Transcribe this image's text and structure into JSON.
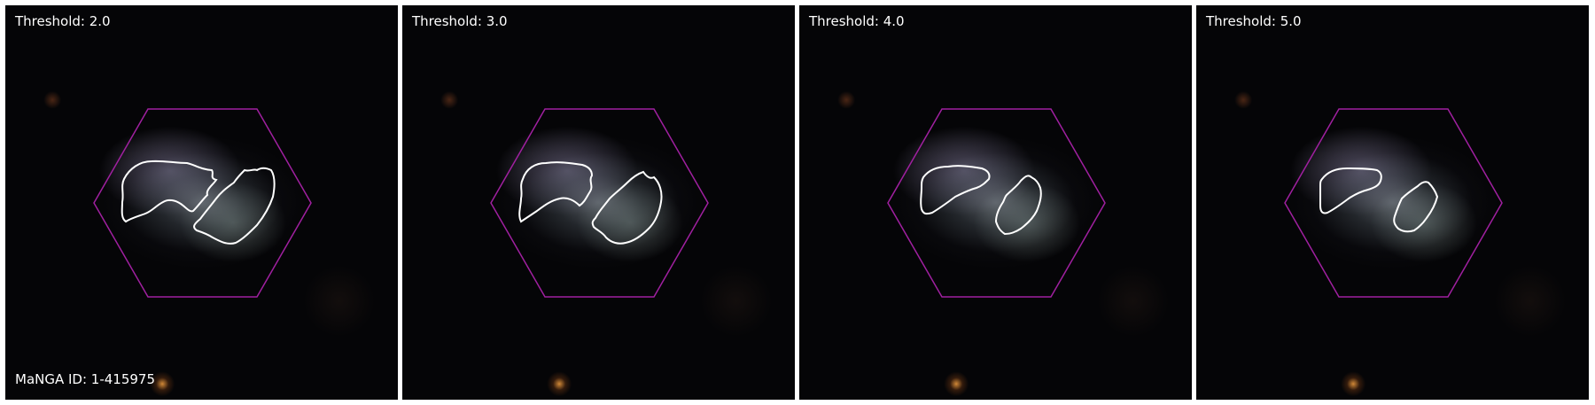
{
  "panels": [
    {
      "threshold_label": "Threshold: 2.0"
    },
    {
      "threshold_label": "Threshold: 3.0"
    },
    {
      "threshold_label": "Threshold: 4.0"
    },
    {
      "threshold_label": "Threshold: 5.0"
    }
  ],
  "galaxy_id_label": "MaNGA ID: 1-415975",
  "colors": {
    "hexagon": "#a020a0",
    "contour": "#ffffff",
    "label_text": "#ffffff"
  }
}
